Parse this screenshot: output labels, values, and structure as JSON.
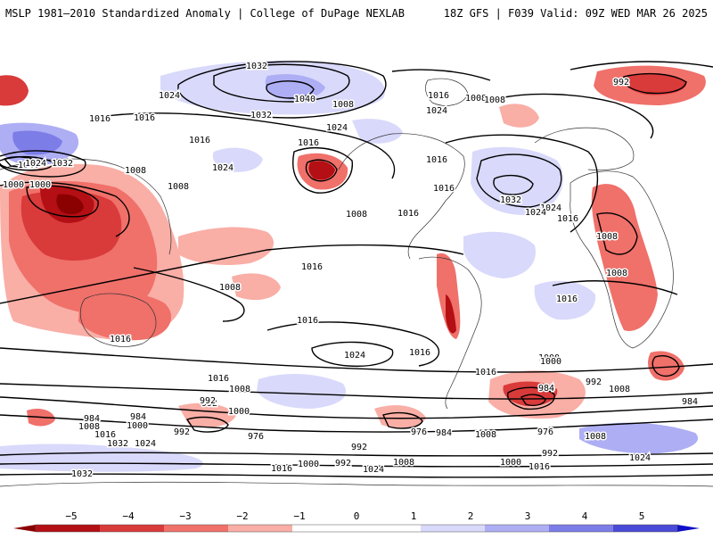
{
  "header": {
    "left_title": "MSLP 1981–2010 Standardized Anomaly | College of DuPage NEXLAB",
    "right_title": "18Z GFS | F039 Valid: 09Z WED MAR 26 2025"
  },
  "colors": {
    "neg5": "#8b0000",
    "neg4": "#b30f14",
    "neg3": "#d93a3a",
    "neg2": "#f0706a",
    "neg1": "#f9aea6",
    "neutral": "#ffffff",
    "pos1": "#d9d9fb",
    "pos2": "#aeaef5",
    "pos3": "#7d7de8",
    "pos4": "#4a4ad8",
    "pos5": "#1010c8",
    "contour": "#000000",
    "coast": "#333333"
  },
  "contour_labels": [
    {
      "text": "1032"
    },
    {
      "text": "1024"
    },
    {
      "text": "1016"
    },
    {
      "text": "1008"
    },
    {
      "text": "992"
    },
    {
      "text": "1040"
    },
    {
      "text": "1024"
    },
    {
      "text": "1032"
    },
    {
      "text": "1016"
    },
    {
      "text": "1024"
    },
    {
      "text": "1008"
    },
    {
      "text": "1040"
    },
    {
      "text": "1024"
    },
    {
      "text": "1032"
    },
    {
      "text": "1008"
    },
    {
      "text": "1000"
    },
    {
      "text": "1008"
    },
    {
      "text": "1000"
    },
    {
      "text": "1016"
    },
    {
      "text": "1024"
    },
    {
      "text": "1016"
    },
    {
      "text": "1008"
    },
    {
      "text": "1008"
    },
    {
      "text": "1016"
    },
    {
      "text": "1016"
    },
    {
      "text": "1016"
    },
    {
      "text": "1016"
    },
    {
      "text": "1032"
    },
    {
      "text": "1024"
    },
    {
      "text": "1024"
    },
    {
      "text": "1016"
    },
    {
      "text": "1016"
    },
    {
      "text": "1008"
    },
    {
      "text": "1008"
    },
    {
      "text": "1008"
    },
    {
      "text": "1016"
    },
    {
      "text": "1016"
    },
    {
      "text": "1016"
    },
    {
      "text": "1024"
    },
    {
      "text": "1016"
    },
    {
      "text": "1016"
    },
    {
      "text": "1000"
    },
    {
      "text": "1016"
    },
    {
      "text": "1008"
    },
    {
      "text": "1000"
    },
    {
      "text": "992"
    },
    {
      "text": "992"
    },
    {
      "text": "984"
    },
    {
      "text": "984"
    },
    {
      "text": "1008"
    },
    {
      "text": "1000"
    },
    {
      "text": "1016"
    },
    {
      "text": "992"
    },
    {
      "text": "1032"
    },
    {
      "text": "1024"
    },
    {
      "text": "976"
    },
    {
      "text": "1032"
    },
    {
      "text": "992"
    },
    {
      "text": "976"
    },
    {
      "text": "984"
    },
    {
      "text": "1008"
    },
    {
      "text": "1000"
    },
    {
      "text": "984"
    },
    {
      "text": "992"
    },
    {
      "text": "1008"
    },
    {
      "text": "976"
    },
    {
      "text": "984"
    },
    {
      "text": "1008"
    },
    {
      "text": "1024"
    },
    {
      "text": "992"
    },
    {
      "text": "1016"
    },
    {
      "text": "1000"
    },
    {
      "text": "992"
    },
    {
      "text": "1024"
    },
    {
      "text": "1008"
    },
    {
      "text": "1000"
    },
    {
      "text": "1016"
    }
  ],
  "colorbar": {
    "ticks": [
      "−5",
      "−4",
      "−3",
      "−2",
      "−1",
      "0",
      "1",
      "2",
      "3",
      "4",
      "5"
    ]
  }
}
